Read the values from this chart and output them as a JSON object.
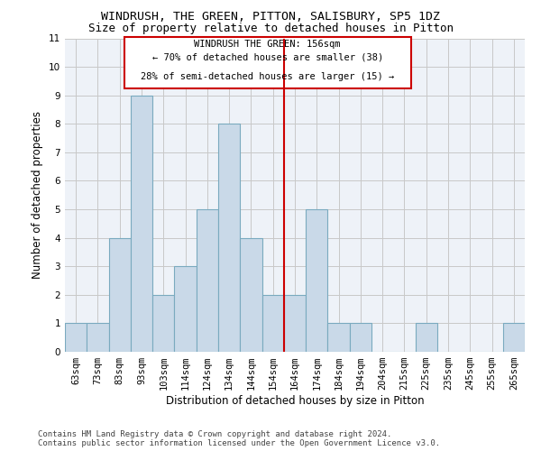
{
  "title": "WINDRUSH, THE GREEN, PITTON, SALISBURY, SP5 1DZ",
  "subtitle": "Size of property relative to detached houses in Pitton",
  "xlabel": "Distribution of detached houses by size in Pitton",
  "ylabel": "Number of detached properties",
  "categories": [
    "63sqm",
    "73sqm",
    "83sqm",
    "93sqm",
    "103sqm",
    "114sqm",
    "124sqm",
    "134sqm",
    "144sqm",
    "154sqm",
    "164sqm",
    "174sqm",
    "184sqm",
    "194sqm",
    "204sqm",
    "215sqm",
    "225sqm",
    "235sqm",
    "245sqm",
    "255sqm",
    "265sqm"
  ],
  "values": [
    1,
    1,
    4,
    9,
    2,
    3,
    5,
    8,
    4,
    2,
    2,
    5,
    1,
    1,
    0,
    0,
    1,
    0,
    0,
    0,
    1
  ],
  "bar_color": "#c9d9e8",
  "bar_edge_color": "#7aaabf",
  "ylim": [
    0,
    11
  ],
  "yticks": [
    0,
    1,
    2,
    3,
    4,
    5,
    6,
    7,
    8,
    9,
    10,
    11
  ],
  "ref_line_index": 9,
  "annotation_line1": "WINDRUSH THE GREEN: 156sqm",
  "annotation_line2": "← 70% of detached houses are smaller (38)",
  "annotation_line3": "28% of semi-detached houses are larger (15) →",
  "annotation_color": "#cc0000",
  "footer_line1": "Contains HM Land Registry data © Crown copyright and database right 2024.",
  "footer_line2": "Contains public sector information licensed under the Open Government Licence v3.0.",
  "background_color": "#eef2f8",
  "grid_color": "#c8c8c8",
  "title_fontsize": 9.5,
  "subtitle_fontsize": 9,
  "axis_label_fontsize": 8.5,
  "tick_fontsize": 7.5,
  "annotation_fontsize": 7.5,
  "footer_fontsize": 6.5
}
